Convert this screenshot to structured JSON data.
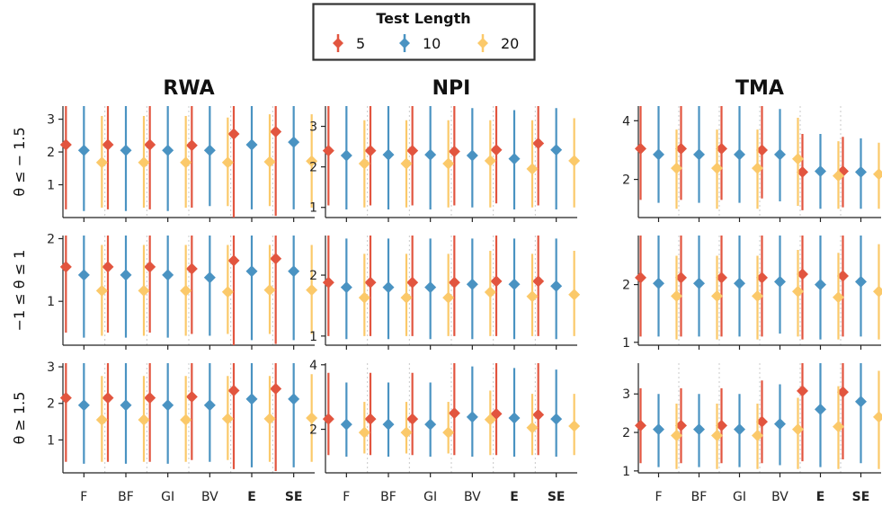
{
  "chart_data": {
    "type": "errorbar",
    "legend": {
      "title": "Test Length",
      "placement": "top-center",
      "entries": [
        "5",
        "10",
        "20"
      ]
    },
    "colors": {
      "5": "#e2553f",
      "10": "#4a93c2",
      "20": "#fbc96a",
      "separator": "#c8c8c8",
      "axis": "#222222"
    },
    "methods": [
      "F",
      "BF",
      "GI",
      "BV",
      "E",
      "SE"
    ],
    "bold_methods": [
      "E",
      "SE"
    ],
    "columns": [
      "RWA",
      "NPI",
      "TMA"
    ],
    "rows": [
      "θ ≤ − 1.5",
      "−1 ≤ θ ≤ 1",
      "θ ≥ 1.5"
    ],
    "panels": [
      {
        "column": "RWA",
        "row": "θ ≤ − 1.5",
        "ylim": [
          0.0,
          3.4
        ],
        "yticks": [
          1,
          2,
          3
        ],
        "series": [
          {
            "name": "5",
            "values": [
              2.22,
              2.22,
              2.22,
              2.2,
              2.55,
              2.62
            ],
            "lower": [
              0.25,
              0.25,
              0.25,
              0.3,
              0.0,
              0.05
            ],
            "upper": [
              3.4,
              3.4,
              3.4,
              3.4,
              3.4,
              3.4
            ]
          },
          {
            "name": "10",
            "values": [
              2.05,
              2.05,
              2.05,
              2.05,
              2.22,
              2.3
            ],
            "lower": [
              0.2,
              0.2,
              0.2,
              0.35,
              0.25,
              0.25
            ],
            "upper": [
              3.4,
              3.4,
              3.4,
              3.4,
              3.4,
              3.4
            ]
          },
          {
            "name": "20",
            "values": [
              1.68,
              1.68,
              1.68,
              1.68,
              1.7,
              1.72
            ],
            "lower": [
              0.3,
              0.3,
              0.3,
              0.35,
              0.35,
              0.3
            ],
            "upper": [
              3.1,
              3.1,
              3.1,
              3.05,
              3.15,
              3.15
            ]
          }
        ]
      },
      {
        "column": "NPI",
        "row": "θ ≤ − 1.5",
        "ylim": [
          0.75,
          3.5
        ],
        "yticks": [
          1,
          2,
          3
        ],
        "series": [
          {
            "name": "5",
            "values": [
              2.4,
              2.4,
              2.4,
              2.38,
              2.42,
              2.58
            ],
            "lower": [
              1.05,
              1.05,
              1.05,
              1.05,
              1.1,
              1.05
            ],
            "upper": [
              3.5,
              3.5,
              3.5,
              3.5,
              3.5,
              3.5
            ]
          },
          {
            "name": "10",
            "values": [
              2.28,
              2.3,
              2.3,
              2.28,
              2.2,
              2.42
            ],
            "lower": [
              0.95,
              0.95,
              0.95,
              1.0,
              0.95,
              0.95
            ],
            "upper": [
              3.5,
              3.5,
              3.5,
              3.45,
              3.4,
              3.45
            ]
          },
          {
            "name": "20",
            "values": [
              2.08,
              2.08,
              2.08,
              2.15,
              1.95,
              2.15
            ],
            "lower": [
              1.0,
              1.0,
              1.0,
              1.0,
              1.0,
              1.0
            ],
            "upper": [
              3.15,
              3.15,
              3.15,
              3.15,
              3.15,
              3.2
            ]
          }
        ]
      },
      {
        "column": "TMA",
        "row": "θ ≤ − 1.5",
        "ylim": [
          0.7,
          4.5
        ],
        "yticks": [
          2,
          4
        ],
        "series": [
          {
            "name": "5",
            "values": [
              3.05,
              3.05,
              3.05,
              3.0,
              2.25,
              2.28
            ],
            "lower": [
              1.3,
              1.3,
              1.3,
              1.35,
              0.95,
              1.05
            ],
            "upper": [
              4.5,
              4.5,
              4.5,
              4.5,
              3.55,
              3.45
            ]
          },
          {
            "name": "10",
            "values": [
              2.85,
              2.85,
              2.85,
              2.85,
              2.28,
              2.25
            ],
            "lower": [
              1.2,
              1.2,
              1.2,
              1.25,
              1.0,
              1.0
            ],
            "upper": [
              4.5,
              4.5,
              4.5,
              4.4,
              3.55,
              3.4
            ]
          },
          {
            "name": "20",
            "values": [
              2.38,
              2.38,
              2.38,
              2.7,
              2.12,
              2.18
            ],
            "lower": [
              1.0,
              1.0,
              1.0,
              1.1,
              1.0,
              1.0
            ],
            "upper": [
              3.7,
              3.7,
              3.7,
              4.1,
              3.3,
              3.25
            ]
          }
        ]
      },
      {
        "column": "RWA",
        "row": "−1 ≤ θ ≤ 1",
        "ylim": [
          0.3,
          2.05
        ],
        "yticks": [
          1,
          2
        ],
        "series": [
          {
            "name": "5",
            "values": [
              1.55,
              1.55,
              1.55,
              1.52,
              1.65,
              1.68
            ],
            "lower": [
              0.5,
              0.5,
              0.5,
              0.48,
              0.3,
              0.32
            ],
            "upper": [
              2.05,
              2.05,
              2.05,
              2.05,
              2.05,
              2.05
            ]
          },
          {
            "name": "10",
            "values": [
              1.42,
              1.42,
              1.42,
              1.38,
              1.48,
              1.48
            ],
            "lower": [
              0.42,
              0.42,
              0.42,
              0.45,
              0.38,
              0.38
            ],
            "upper": [
              2.05,
              2.05,
              2.05,
              2.05,
              2.05,
              2.05
            ]
          },
          {
            "name": "20",
            "values": [
              1.17,
              1.17,
              1.17,
              1.15,
              1.18,
              1.18
            ],
            "lower": [
              0.45,
              0.45,
              0.45,
              0.48,
              0.48,
              0.48
            ],
            "upper": [
              1.9,
              1.9,
              1.9,
              1.9,
              1.9,
              1.9
            ]
          }
        ]
      },
      {
        "column": "NPI",
        "row": "−1 ≤ θ ≤ 1",
        "ylim": [
          0.85,
          2.65
        ],
        "yticks": [
          1,
          2
        ],
        "series": [
          {
            "name": "5",
            "values": [
              1.88,
              1.88,
              1.88,
              1.88,
              1.9,
              1.9
            ],
            "lower": [
              1.0,
              1.0,
              1.0,
              1.0,
              1.0,
              1.0
            ],
            "upper": [
              2.65,
              2.65,
              2.65,
              2.65,
              2.65,
              2.65
            ]
          },
          {
            "name": "10",
            "values": [
              1.8,
              1.8,
              1.8,
              1.85,
              1.85,
              1.82
            ],
            "lower": [
              0.95,
              0.95,
              0.95,
              0.95,
              0.95,
              0.95
            ],
            "upper": [
              2.6,
              2.6,
              2.6,
              2.6,
              2.6,
              2.6
            ]
          },
          {
            "name": "20",
            "values": [
              1.63,
              1.63,
              1.63,
              1.72,
              1.65,
              1.68
            ],
            "lower": [
              1.0,
              1.0,
              1.0,
              1.0,
              1.0,
              1.0
            ],
            "upper": [
              2.35,
              2.35,
              2.35,
              2.4,
              2.35,
              2.4
            ]
          }
        ]
      },
      {
        "column": "TMA",
        "row": "−1 ≤ θ ≤ 1",
        "ylim": [
          0.95,
          2.85
        ],
        "yticks": [
          1,
          2
        ],
        "series": [
          {
            "name": "5",
            "values": [
              2.12,
              2.12,
              2.12,
              2.12,
              2.18,
              2.15
            ],
            "lower": [
              1.1,
              1.1,
              1.1,
              1.1,
              1.05,
              1.1
            ],
            "upper": [
              2.85,
              2.85,
              2.85,
              2.85,
              2.85,
              2.85
            ]
          },
          {
            "name": "10",
            "values": [
              2.02,
              2.02,
              2.02,
              2.05,
              2.0,
              2.05
            ],
            "lower": [
              1.1,
              1.1,
              1.1,
              1.15,
              1.05,
              1.1
            ],
            "upper": [
              2.85,
              2.85,
              2.85,
              2.85,
              2.85,
              2.85
            ]
          },
          {
            "name": "20",
            "values": [
              1.8,
              1.8,
              1.8,
              1.88,
              1.78,
              1.88
            ],
            "lower": [
              1.05,
              1.05,
              1.05,
              1.1,
              1.05,
              1.05
            ],
            "upper": [
              2.5,
              2.5,
              2.5,
              2.6,
              2.55,
              2.7
            ]
          }
        ]
      },
      {
        "column": "RWA",
        "row": "θ ≥ 1.5",
        "ylim": [
          0.1,
          3.1
        ],
        "yticks": [
          1,
          2,
          3
        ],
        "series": [
          {
            "name": "5",
            "values": [
              2.15,
              2.15,
              2.15,
              2.18,
              2.35,
              2.4
            ],
            "lower": [
              0.4,
              0.4,
              0.4,
              0.45,
              0.2,
              0.15
            ],
            "upper": [
              3.1,
              3.1,
              3.1,
              3.1,
              3.1,
              3.1
            ]
          },
          {
            "name": "10",
            "values": [
              1.95,
              1.95,
              1.95,
              1.95,
              2.12,
              2.12
            ],
            "lower": [
              0.35,
              0.35,
              0.35,
              0.4,
              0.25,
              0.25
            ],
            "upper": [
              3.1,
              3.1,
              3.1,
              3.1,
              3.1,
              3.1
            ]
          },
          {
            "name": "20",
            "values": [
              1.55,
              1.55,
              1.55,
              1.58,
              1.58,
              1.6
            ],
            "lower": [
              0.4,
              0.4,
              0.4,
              0.45,
              0.4,
              0.4
            ],
            "upper": [
              2.75,
              2.75,
              2.75,
              2.75,
              2.75,
              2.8
            ]
          }
        ]
      },
      {
        "column": "NPI",
        "row": "θ ≥ 1.5",
        "ylim": [
          0.65,
          4.05
        ],
        "yticks": [
          2,
          4
        ],
        "series": [
          {
            "name": "5",
            "values": [
              2.32,
              2.32,
              2.32,
              2.5,
              2.48,
              2.45
            ],
            "lower": [
              1.2,
              1.2,
              1.2,
              1.2,
              1.2,
              1.2
            ],
            "upper": [
              3.75,
              3.75,
              3.75,
              4.05,
              4.05,
              4.05
            ]
          },
          {
            "name": "10",
            "values": [
              2.15,
              2.15,
              2.15,
              2.38,
              2.35,
              2.32
            ],
            "lower": [
              1.15,
              1.15,
              1.15,
              1.15,
              1.15,
              1.15
            ],
            "upper": [
              3.45,
              3.45,
              3.45,
              3.95,
              3.9,
              3.85
            ]
          },
          {
            "name": "20",
            "values": [
              1.9,
              1.9,
              1.9,
              2.3,
              2.05,
              2.1
            ],
            "lower": [
              1.25,
              1.25,
              1.25,
              1.2,
              1.2,
              1.2
            ],
            "upper": [
              2.85,
              2.85,
              2.85,
              3.2,
              3.1,
              3.1
            ]
          }
        ]
      },
      {
        "column": "TMA",
        "row": "θ ≥ 1.5",
        "ylim": [
          0.95,
          3.8
        ],
        "yticks": [
          1,
          2,
          3
        ],
        "series": [
          {
            "name": "5",
            "values": [
              2.18,
              2.18,
              2.18,
              2.28,
              3.08,
              3.05
            ],
            "lower": [
              1.2,
              1.2,
              1.2,
              1.2,
              1.25,
              1.3
            ],
            "upper": [
              3.15,
              3.15,
              3.15,
              3.35,
              3.8,
              3.8
            ]
          },
          {
            "name": "10",
            "values": [
              2.08,
              2.08,
              2.08,
              2.22,
              2.6,
              2.8
            ],
            "lower": [
              1.1,
              1.1,
              1.1,
              1.15,
              1.1,
              1.2
            ],
            "upper": [
              3.0,
              3.0,
              3.0,
              3.25,
              3.8,
              3.8
            ]
          },
          {
            "name": "20",
            "values": [
              1.92,
              1.92,
              1.92,
              2.08,
              2.15,
              2.4
            ],
            "lower": [
              1.05,
              1.05,
              1.05,
              1.05,
              1.05,
              1.05
            ],
            "upper": [
              2.75,
              2.75,
              2.75,
              2.9,
              3.2,
              3.6
            ]
          }
        ]
      }
    ]
  }
}
